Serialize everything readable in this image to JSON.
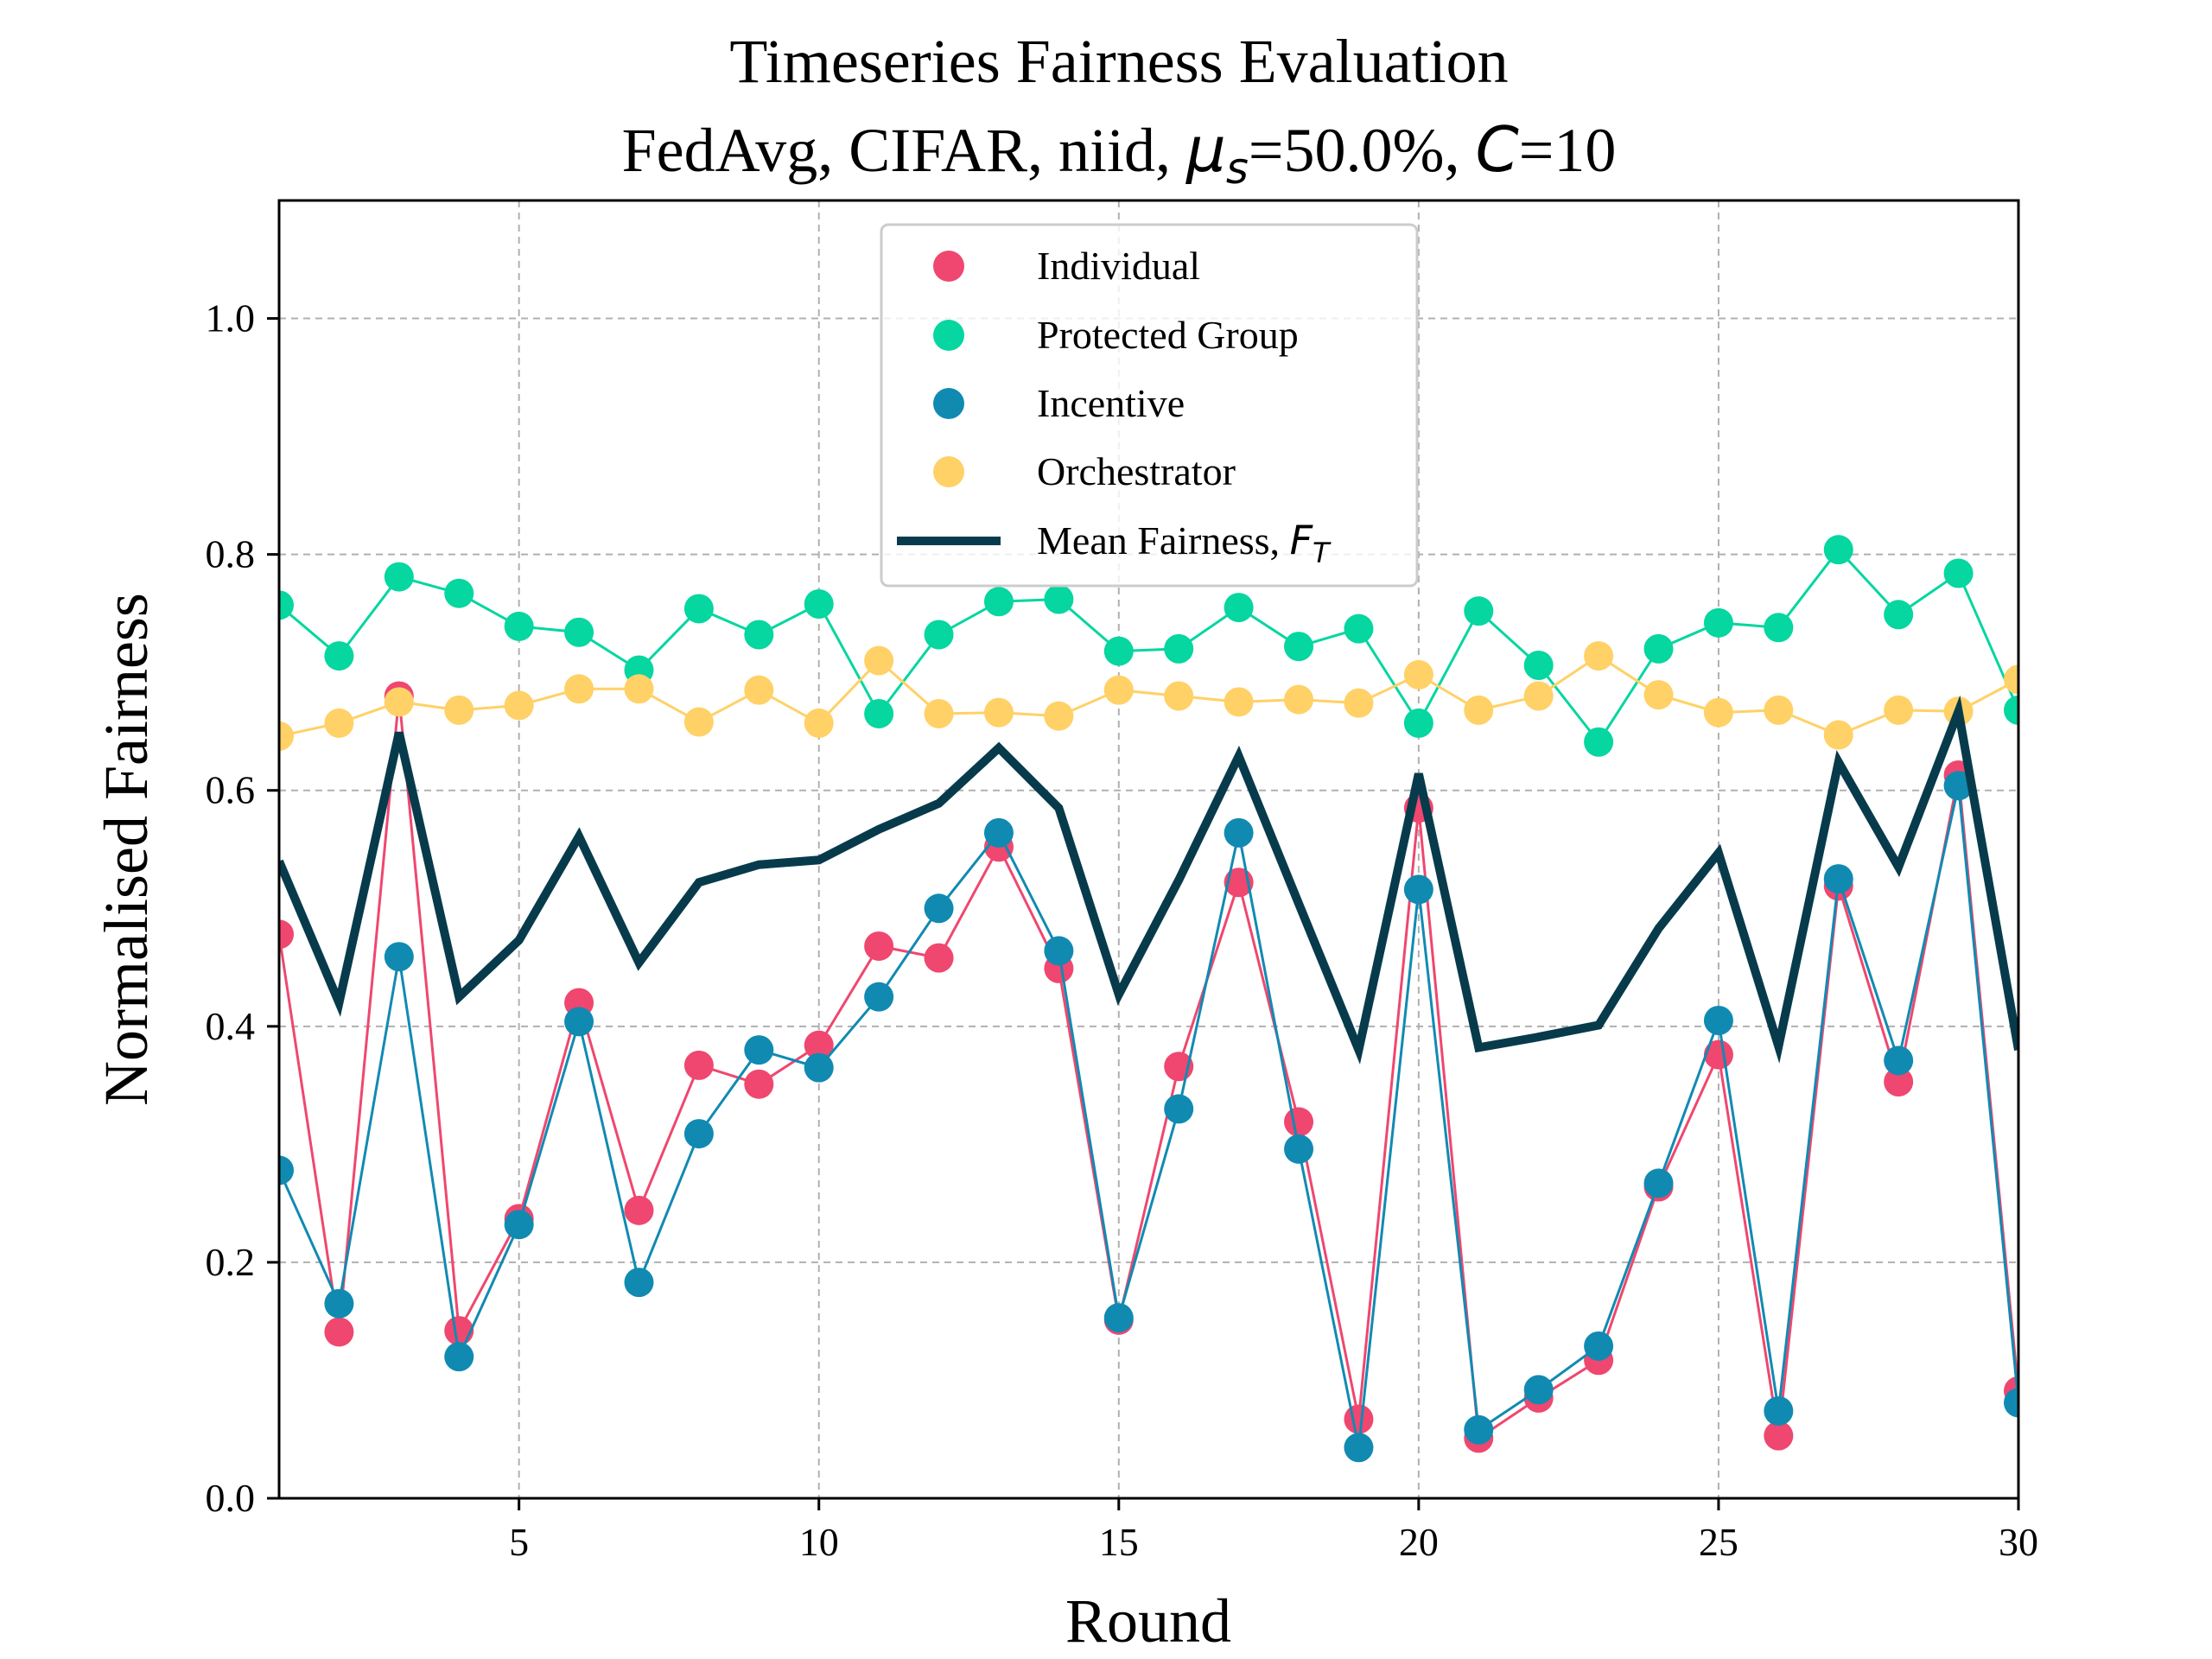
{
  "chart_data": {
    "type": "line",
    "title_line1": "Timeseries Fairness Evaluation",
    "title_line2_prefix": "FedAvg, CIFAR, niid, ",
    "title_mu": "μ",
    "title_mu_sub": "s",
    "title_mid": "=50.0%, ",
    "title_c": "C",
    "title_suffix": "=10",
    "xlabel": "Round",
    "ylabel": "Normalised Fairness",
    "xlim": [
      1,
      30
    ],
    "ylim": [
      0.0,
      1.1
    ],
    "xticks": [
      5,
      10,
      15,
      20,
      25,
      30
    ],
    "xtick_labels": [
      "5",
      "10",
      "15",
      "20",
      "25",
      "30"
    ],
    "yticks": [
      0.0,
      0.2,
      0.4,
      0.6,
      0.8,
      1.0
    ],
    "ytick_labels": [
      "0.0",
      "0.2",
      "0.4",
      "0.6",
      "0.8",
      "1.0"
    ],
    "grid": true,
    "legend_position": "upper-center",
    "x": [
      1,
      2,
      3,
      4,
      5,
      6,
      7,
      8,
      9,
      10,
      11,
      12,
      13,
      14,
      15,
      16,
      17,
      18,
      19,
      20,
      21,
      22,
      23,
      24,
      25,
      26,
      27,
      28,
      29,
      30
    ],
    "series": [
      {
        "name": "Individual",
        "color": "#ef476f",
        "style": "marker-line",
        "values": [
          0.478,
          0.141,
          0.68,
          0.142,
          0.237,
          0.42,
          0.244,
          0.367,
          0.351,
          0.384,
          0.468,
          0.458,
          0.552,
          0.449,
          0.151,
          0.366,
          0.522,
          0.319,
          0.067,
          0.585,
          0.051,
          0.085,
          0.117,
          0.264,
          0.376,
          0.053,
          0.519,
          0.353,
          0.613,
          0.091
        ]
      },
      {
        "name": "Protected Group",
        "color": "#06d6a0",
        "style": "marker-line",
        "values": [
          0.757,
          0.714,
          0.781,
          0.767,
          0.739,
          0.734,
          0.702,
          0.754,
          0.732,
          0.758,
          0.665,
          0.732,
          0.76,
          0.762,
          0.718,
          0.72,
          0.755,
          0.722,
          0.737,
          0.657,
          0.752,
          0.706,
          0.641,
          0.72,
          0.742,
          0.738,
          0.804,
          0.749,
          0.784,
          0.668
        ]
      },
      {
        "name": "Incentive",
        "color": "#118ab2",
        "style": "marker-line",
        "values": [
          0.278,
          0.165,
          0.459,
          0.12,
          0.232,
          0.404,
          0.183,
          0.309,
          0.38,
          0.365,
          0.425,
          0.5,
          0.564,
          0.464,
          0.153,
          0.33,
          0.564,
          0.296,
          0.043,
          0.516,
          0.058,
          0.092,
          0.129,
          0.267,
          0.405,
          0.074,
          0.525,
          0.371,
          0.604,
          0.081
        ]
      },
      {
        "name": "Orchestrator",
        "color": "#ffd166",
        "style": "marker-line",
        "values": [
          0.646,
          0.657,
          0.675,
          0.668,
          0.672,
          0.686,
          0.686,
          0.658,
          0.685,
          0.657,
          0.71,
          0.665,
          0.666,
          0.663,
          0.685,
          0.68,
          0.675,
          0.677,
          0.674,
          0.698,
          0.668,
          0.68,
          0.714,
          0.681,
          0.666,
          0.668,
          0.647,
          0.668,
          0.667,
          0.694
        ]
      },
      {
        "name_prefix": "Mean Fairness, ",
        "name_symbol": "F",
        "name_sub": "T",
        "color": "#073b4c",
        "style": "thick-line",
        "values": [
          0.54,
          0.42,
          0.649,
          0.425,
          0.473,
          0.561,
          0.454,
          0.522,
          0.537,
          0.541,
          0.567,
          0.589,
          0.636,
          0.585,
          0.427,
          0.524,
          0.629,
          0.504,
          0.38,
          0.614,
          0.382,
          0.391,
          0.401,
          0.483,
          0.547,
          0.383,
          0.624,
          0.535,
          0.667,
          0.38
        ]
      }
    ]
  }
}
